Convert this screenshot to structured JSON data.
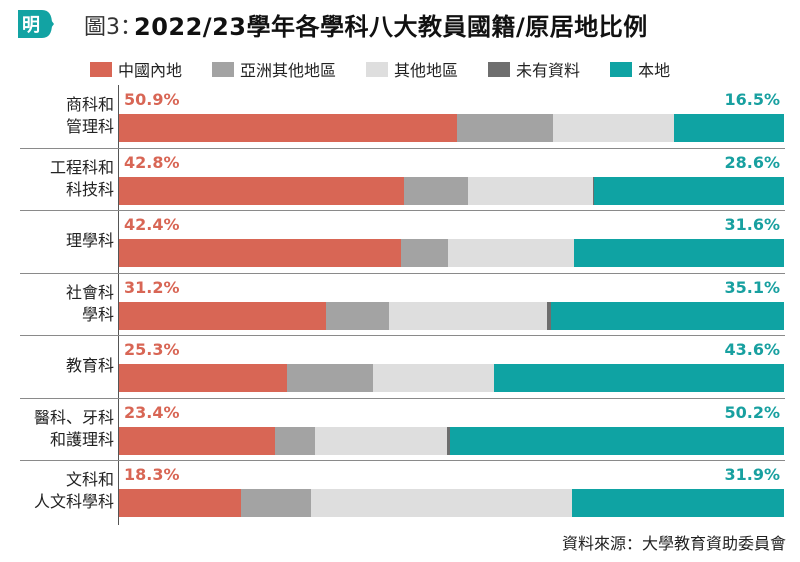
{
  "header": {
    "logo_text": "明",
    "figure_label": "圖3：",
    "title": "2022/23學年各學科八大教員國籍/原居地比例"
  },
  "colors": {
    "china": "#d86655",
    "asia": "#a3a3a3",
    "other": "#dedede",
    "unknown": "#6e6e6e",
    "local": "#0fa3a3"
  },
  "chart_data": {
    "type": "bar",
    "orientation": "horizontal",
    "stacked": true,
    "percent_scale": [
      0,
      100
    ],
    "title": "2022/23學年各學科八大教員國籍/原居地比例",
    "legend_position": "top",
    "series_names": [
      "中國內地",
      "亞洲其他地區",
      "其他地區",
      "未有資料",
      "本地"
    ],
    "rows": [
      {
        "label_lines": [
          "商科和",
          "管理科"
        ],
        "china": 50.9,
        "asia": 14.3,
        "other": 18.3,
        "unknown": 0.0,
        "local": 16.5,
        "china_label": "50.9%",
        "local_label": "16.5%"
      },
      {
        "label_lines": [
          "工程科和",
          "科技科"
        ],
        "china": 42.8,
        "asia": 9.7,
        "other": 18.8,
        "unknown": 0.1,
        "local": 28.6,
        "china_label": "42.8%",
        "local_label": "28.6%"
      },
      {
        "label_lines": [
          "理學科"
        ],
        "china": 42.4,
        "asia": 7.0,
        "other": 19.0,
        "unknown": 0.0,
        "local": 31.6,
        "china_label": "42.4%",
        "local_label": "31.6%"
      },
      {
        "label_lines": [
          "社會科",
          "學科"
        ],
        "china": 31.2,
        "asia": 9.4,
        "other": 23.8,
        "unknown": 0.5,
        "local": 35.1,
        "china_label": "31.2%",
        "local_label": "35.1%"
      },
      {
        "label_lines": [
          "教育科"
        ],
        "china": 25.3,
        "asia": 12.9,
        "other": 18.2,
        "unknown": 0.0,
        "local": 43.6,
        "china_label": "25.3%",
        "local_label": "43.6%"
      },
      {
        "label_lines": [
          "醫科、牙科",
          "和護理科"
        ],
        "china": 23.4,
        "asia": 6.1,
        "other": 19.8,
        "unknown": 0.5,
        "local": 50.2,
        "china_label": "23.4%",
        "local_label": "50.2%"
      },
      {
        "label_lines": [
          "文科和",
          "人文科學科"
        ],
        "china": 18.3,
        "asia": 10.5,
        "other": 39.3,
        "unknown": 0.0,
        "local": 31.9,
        "china_label": "18.3%",
        "local_label": "31.9%"
      }
    ]
  },
  "legend": [
    {
      "label": "中國內地",
      "key": "china"
    },
    {
      "label": "亞洲其他地區",
      "key": "asia"
    },
    {
      "label": "其他地區",
      "key": "other"
    },
    {
      "label": "未有資料",
      "key": "unknown"
    },
    {
      "label": "本地",
      "key": "local"
    }
  ],
  "source": "資料來源：大學教育資助委員會"
}
